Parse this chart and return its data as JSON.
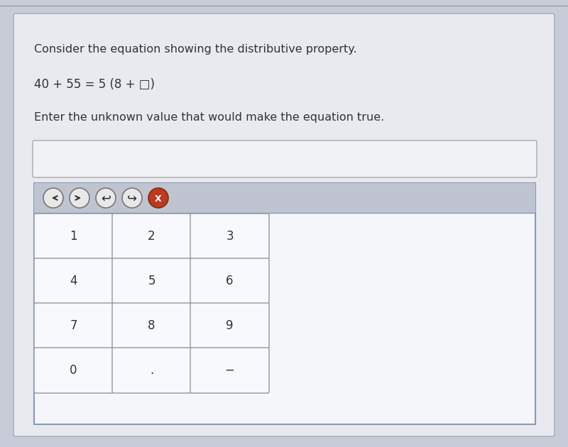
{
  "bg_color": "#c8ccd8",
  "panel_bg": "#e8eaf0",
  "title_line1": "Consider the equation showing the distributive property.",
  "equation": "40 + 55 = 5 (8 + □)",
  "instruction": "Enter the unknown value that would make the equation true.",
  "input_box_color": "#f0f2f6",
  "input_box_border": "#aaaaaa",
  "toolbar_bg": "#c0c4d0",
  "keypad_bg": "#f5f6fa",
  "keypad_border": "#8899bb",
  "key_face": "#f8f9fc",
  "key_border": "#8899aa",
  "keys": [
    [
      "1",
      "2",
      "3"
    ],
    [
      "4",
      "5",
      "6"
    ],
    [
      "7",
      "8",
      "9"
    ],
    [
      "0",
      ".",
      "−"
    ]
  ],
  "font_color": "#333333",
  "text_font_size": 11.5,
  "eq_font_size": 12,
  "key_font_size": 12,
  "btn_colors": [
    "#e8e8e8",
    "#e8e8e8",
    "#e8e8e8",
    "#e8e8e8",
    "#c03820"
  ],
  "btn_border": "#777777",
  "btn_x_color": "#ffffff"
}
